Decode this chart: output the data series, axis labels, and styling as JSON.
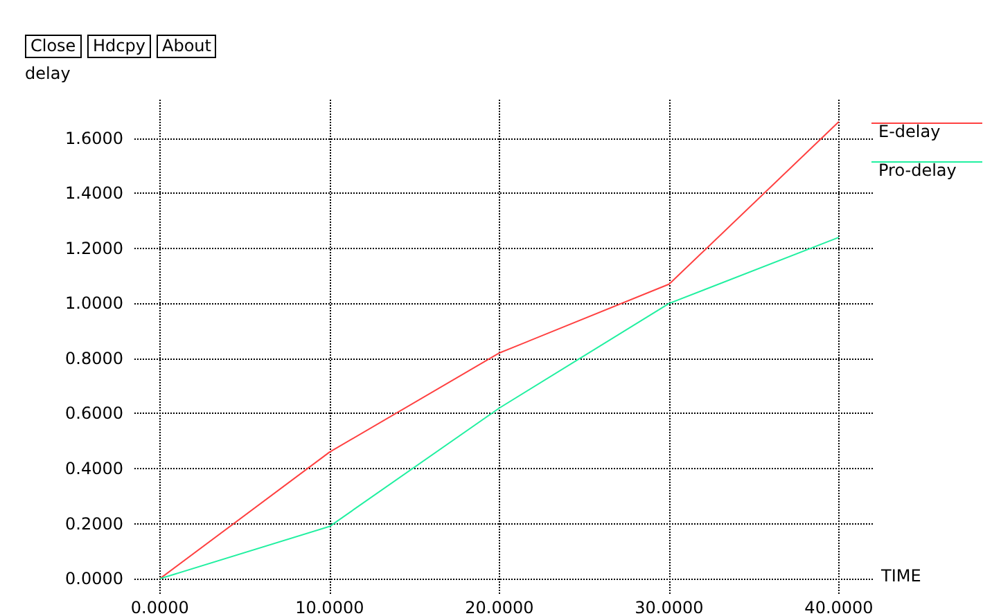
{
  "chart_data": {
    "type": "line",
    "xlabel": "TIME",
    "ylabel": "delay",
    "x": [
      0,
      10,
      20,
      30,
      40
    ],
    "series": [
      {
        "name": "E-delay",
        "color": "#ff4040",
        "values": [
          0,
          0.46,
          0.82,
          1.07,
          1.66
        ]
      },
      {
        "name": "Pro-delay",
        "color": "#20f0a0",
        "values": [
          0,
          0.19,
          0.62,
          1.0,
          1.24
        ]
      }
    ],
    "xlim": [
      -1.5,
      42
    ],
    "ylim": [
      -0.06,
      1.74
    ],
    "xticks": [
      {
        "value": 0,
        "label": "0.0000"
      },
      {
        "value": 10,
        "label": "10.0000"
      },
      {
        "value": 20,
        "label": "20.0000"
      },
      {
        "value": 30,
        "label": "30.0000"
      },
      {
        "value": 40,
        "label": "40.0000"
      }
    ],
    "yticks": [
      {
        "value": 0,
        "label": "0.0000"
      },
      {
        "value": 0.2,
        "label": "0.2000"
      },
      {
        "value": 0.4,
        "label": "0.4000"
      },
      {
        "value": 0.6,
        "label": "0.6000"
      },
      {
        "value": 0.8,
        "label": "0.8000"
      },
      {
        "value": 1.0,
        "label": "1.0000"
      },
      {
        "value": 1.2,
        "label": "1.2000"
      },
      {
        "value": 1.4,
        "label": "1.4000"
      },
      {
        "value": 1.6,
        "label": "1.6000"
      }
    ],
    "annotations": [
      "Close",
      "Hdcpy",
      "About"
    ],
    "grid": true,
    "legend": "top right",
    "marker": "none",
    "line_style": "solid"
  }
}
